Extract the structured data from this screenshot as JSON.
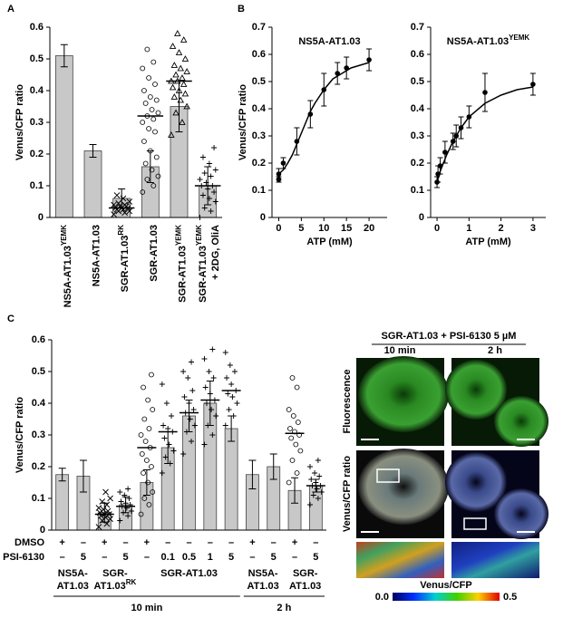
{
  "panel_labels": [
    "A",
    "B",
    "C"
  ],
  "chart_data": [
    {
      "type": "bar",
      "y_label": "Venus/CFP ratio",
      "categories": [
        {
          "text": "NS5A-AT1.03",
          "sup": "YEMK"
        },
        {
          "text": "NS5A-AT1.03"
        },
        {
          "text": "SGR-AT1.03",
          "sup": "RK"
        },
        {
          "text": "SGR-AT1.03"
        },
        {
          "text": "SGR-AT1.03",
          "sup": "YEMK"
        },
        {
          "text": "SGR-AT1.03",
          "sup": "YEMK",
          "line2": "+ 2DG, OliA"
        }
      ],
      "values": [
        0.51,
        0.21,
        0.06,
        0.16,
        0.35,
        0.1
      ],
      "errors": [
        0.035,
        0.02,
        0.03,
        0.05,
        0.08,
        0.06
      ],
      "medians": [
        null,
        null,
        0.03,
        0.32,
        0.43,
        0.1
      ],
      "markers": [
        null,
        null,
        "x",
        "o",
        "^",
        "+"
      ],
      "points": [
        null,
        null,
        [
          0.01,
          0.015,
          0.02,
          0.02,
          0.025,
          0.025,
          0.03,
          0.03,
          0.03,
          0.035,
          0.035,
          0.04,
          0.04,
          0.045,
          0.05,
          0.06,
          0.07
        ],
        [
          0.08,
          0.1,
          0.12,
          0.13,
          0.15,
          0.17,
          0.19,
          0.21,
          0.24,
          0.27,
          0.28,
          0.3,
          0.31,
          0.32,
          0.33,
          0.34,
          0.36,
          0.37,
          0.38,
          0.4,
          0.42,
          0.44,
          0.47,
          0.49,
          0.53
        ],
        [
          0.26,
          0.3,
          0.33,
          0.35,
          0.37,
          0.38,
          0.39,
          0.4,
          0.41,
          0.42,
          0.43,
          0.43,
          0.44,
          0.45,
          0.46,
          0.47,
          0.48,
          0.5,
          0.52,
          0.54,
          0.56,
          0.58
        ],
        [
          0.0,
          0.02,
          0.03,
          0.05,
          0.06,
          0.07,
          0.08,
          0.09,
          0.1,
          0.1,
          0.11,
          0.12,
          0.13,
          0.14,
          0.15,
          0.17,
          0.19,
          0.22
        ]
      ],
      "color": "#c8c8c8",
      "ylim": [
        0,
        0.6
      ],
      "yticks": [
        0,
        0.1,
        0.2,
        0.3,
        0.4,
        0.5,
        0.6
      ]
    },
    {
      "type": "line",
      "title": "NS5A-AT1.03",
      "y_label": "Venus/CFP ratio",
      "x_label": "ATP (mM)",
      "x": [
        0,
        0,
        1,
        4,
        7,
        10,
        13,
        15,
        20
      ],
      "values": [
        0.14,
        0.16,
        0.2,
        0.28,
        0.38,
        0.47,
        0.53,
        0.55,
        0.58
      ],
      "errors": [
        0.01,
        0.02,
        0.02,
        0.05,
        0.05,
        0.06,
        0.04,
        0.04,
        0.04
      ],
      "fit_x": [
        0,
        1,
        2,
        3,
        4,
        5,
        6,
        7,
        8,
        10,
        12,
        14,
        16,
        18,
        20
      ],
      "fit_y": [
        0.16,
        0.175,
        0.2,
        0.23,
        0.27,
        0.31,
        0.35,
        0.39,
        0.42,
        0.47,
        0.51,
        0.53,
        0.55,
        0.56,
        0.57
      ],
      "color": "#000000",
      "xlim": [
        -1.5,
        24
      ],
      "ylim": [
        0,
        0.7
      ],
      "xticks": [
        0,
        5,
        10,
        15,
        20
      ],
      "yticks": [
        0,
        0.1,
        0.2,
        0.3,
        0.4,
        0.5,
        0.6,
        0.7
      ]
    },
    {
      "type": "line",
      "title": "NS5A-AT1.03",
      "title_sup": "YEMK",
      "x_label": "ATP (mM)",
      "x": [
        0,
        0.03,
        0.1,
        0.25,
        0.5,
        0.6,
        0.75,
        1,
        1.5,
        3
      ],
      "values": [
        0.13,
        0.16,
        0.19,
        0.24,
        0.28,
        0.3,
        0.33,
        0.37,
        0.46,
        0.49
      ],
      "errors": [
        0.02,
        0.03,
        0.03,
        0.04,
        0.03,
        0.04,
        0.04,
        0.04,
        0.07,
        0.04
      ],
      "fit_x": [
        0,
        0.1,
        0.2,
        0.3,
        0.5,
        0.75,
        1,
        1.5,
        2,
        2.5,
        3
      ],
      "fit_y": [
        0.13,
        0.17,
        0.2,
        0.23,
        0.28,
        0.33,
        0.37,
        0.42,
        0.45,
        0.47,
        0.48
      ],
      "color": "#000000",
      "xlim": [
        -0.2,
        3.4
      ],
      "ylim": [
        0,
        0.7
      ],
      "xticks": [
        0,
        1,
        2,
        3
      ],
      "yticks": [
        0,
        0.1,
        0.2,
        0.3,
        0.4,
        0.5,
        0.6,
        0.7
      ]
    },
    {
      "type": "bar",
      "y_label": "Venus/CFP ratio",
      "values": [
        0.175,
        0.17,
        0.055,
        0.08,
        0.15,
        0.26,
        0.36,
        0.4,
        0.32,
        0.175,
        0.2,
        0.125,
        0.14
      ],
      "errors": [
        0.02,
        0.05,
        0.03,
        0.025,
        0.04,
        0.05,
        0.05,
        0.07,
        0.04,
        0.045,
        0.04,
        0.04,
        0.02
      ],
      "medians": [
        null,
        null,
        0.05,
        0.075,
        0.26,
        0.31,
        0.37,
        0.41,
        0.44,
        null,
        null,
        0.305,
        0.14
      ],
      "markers": [
        null,
        null,
        "x",
        "+",
        "o",
        "+",
        "+",
        "+",
        "+",
        null,
        null,
        "o",
        "+"
      ],
      "points": [
        null,
        null,
        [
          0.01,
          0.02,
          0.03,
          0.035,
          0.04,
          0.045,
          0.05,
          0.05,
          0.055,
          0.06,
          0.065,
          0.07,
          0.08,
          0.09,
          0.1,
          0.12
        ],
        [
          0.03,
          0.045,
          0.055,
          0.06,
          0.07,
          0.075,
          0.08,
          0.085,
          0.09,
          0.1,
          0.11,
          0.12,
          0.13
        ],
        [
          0.05,
          0.08,
          0.1,
          0.12,
          0.15,
          0.18,
          0.2,
          0.22,
          0.24,
          0.26,
          0.28,
          0.3,
          0.32,
          0.35,
          0.38,
          0.41,
          0.45,
          0.49
        ],
        [
          0.18,
          0.21,
          0.23,
          0.25,
          0.27,
          0.29,
          0.31,
          0.32,
          0.33,
          0.36,
          0.4,
          0.46
        ],
        [
          0.24,
          0.28,
          0.31,
          0.33,
          0.35,
          0.37,
          0.38,
          0.4,
          0.42,
          0.44,
          0.48,
          0.5,
          0.53
        ],
        [
          0.27,
          0.3,
          0.33,
          0.36,
          0.38,
          0.4,
          0.41,
          0.43,
          0.45,
          0.48,
          0.5,
          0.54,
          0.57
        ],
        [
          0.33,
          0.36,
          0.38,
          0.4,
          0.42,
          0.43,
          0.44,
          0.46,
          0.48,
          0.5,
          0.52,
          0.56
        ],
        null,
        null,
        [
          0.15,
          0.18,
          0.22,
          0.25,
          0.27,
          0.29,
          0.3,
          0.31,
          0.32,
          0.34,
          0.36,
          0.38,
          0.45,
          0.48
        ],
        [
          0.08,
          0.1,
          0.11,
          0.12,
          0.13,
          0.14,
          0.14,
          0.15,
          0.16,
          0.17,
          0.18,
          0.2,
          0.22
        ]
      ],
      "conditions": [
        {
          "label": "DMSO",
          "values": [
            "+",
            "–",
            "+",
            "–",
            "+",
            "–",
            "–",
            "–",
            "–",
            "+",
            "–",
            "+",
            "–"
          ]
        },
        {
          "label": "PSI-6130",
          "values": [
            "–",
            "5",
            "–",
            "5",
            "–",
            "0.1",
            "0.5",
            "1",
            "5",
            "–",
            "5",
            "–",
            "5"
          ]
        }
      ],
      "groups": [
        {
          "lines": [
            "NS5A-",
            "AT1.03"
          ]
        },
        {
          "lines": [
            "SGR-",
            "AT1.03"
          ],
          "sup": "RK"
        },
        {
          "lines": [
            "SGR-AT1.03"
          ]
        },
        {
          "lines": [
            "NS5A-",
            "AT1.03"
          ]
        },
        {
          "lines": [
            "SGR-",
            "AT1.03"
          ]
        }
      ],
      "times": [
        "10 min",
        "2 h"
      ],
      "color": "#c8c8c8",
      "ylim": [
        0,
        0.6
      ],
      "yticks": [
        0,
        0.1,
        0.2,
        0.3,
        0.4,
        0.5,
        0.6
      ]
    }
  ],
  "microscopy": {
    "title": "SGR-AT1.03 + PSI-6130 5 µM",
    "columns": [
      "10 min",
      "2 h"
    ],
    "rows": [
      "Fluorescence",
      "Venus/CFP ratio"
    ],
    "colorbar": {
      "label": "Venus/CFP",
      "ticks": [
        {
          "value": 0,
          "label": "0.0"
        },
        {
          "value": 0.5,
          "label": "0.5"
        }
      ]
    }
  }
}
